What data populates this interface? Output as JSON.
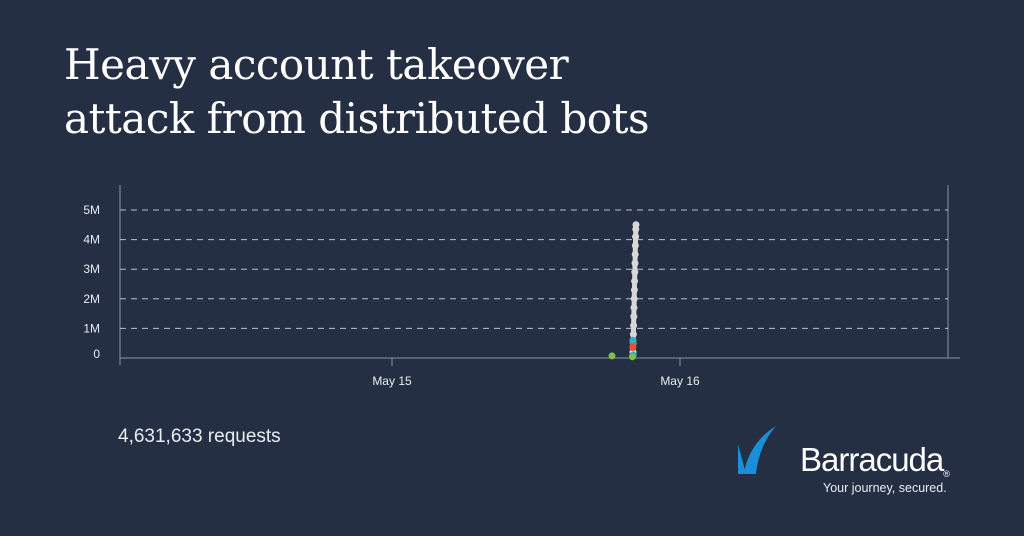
{
  "title": {
    "line1": "Heavy account takeover",
    "line2": "attack from distributed bots"
  },
  "total_label": "4,631,633 requests",
  "brand": {
    "name": "Barracuda",
    "registered": "®",
    "tagline": "Your journey, secured.",
    "color": "#1a8fd8"
  },
  "chart_data": {
    "type": "scatter",
    "title": "",
    "xlabel": "",
    "ylabel": "",
    "xlim": [
      "05-14 01:20",
      "05-16 23:20"
    ],
    "ylim": [
      0,
      5000000
    ],
    "grid": true,
    "legend": "none",
    "x_ticks": [
      {
        "x": "05-15 00:00",
        "label": "May 15"
      },
      {
        "x": "05-16 00:00",
        "label": "May 16"
      }
    ],
    "y_ticks": [
      {
        "y": 0,
        "label": "0"
      },
      {
        "y": 1000000,
        "label": "1M"
      },
      {
        "y": 2000000,
        "label": "2M"
      },
      {
        "y": 3000000,
        "label": "3M"
      },
      {
        "y": 4000000,
        "label": "4M"
      },
      {
        "y": 5000000,
        "label": "5M"
      }
    ],
    "series": [
      {
        "color": "#d8d8d8",
        "points": [
          [
            "05-15 20:05",
            200000
          ],
          [
            "05-15 20:06",
            500000
          ],
          [
            "05-15 20:07",
            800000
          ],
          [
            "05-15 20:08",
            1100000
          ],
          [
            "05-15 20:09",
            1400000
          ],
          [
            "05-15 20:10",
            1700000
          ],
          [
            "05-15 20:11",
            2000000
          ],
          [
            "05-15 20:12",
            2300000
          ],
          [
            "05-15 20:13",
            2600000
          ],
          [
            "05-15 20:14",
            2900000
          ],
          [
            "05-15 20:15",
            3200000
          ],
          [
            "05-15 20:16",
            3500000
          ],
          [
            "05-15 20:17",
            3800000
          ],
          [
            "05-15 20:18",
            4100000
          ],
          [
            "05-15 20:19",
            4350000
          ],
          [
            "05-15 20:20",
            4500000
          ]
        ]
      },
      {
        "color": "#e5533c",
        "points": [
          [
            "05-15 20:05",
            520000
          ],
          [
            "05-15 20:04",
            350000
          ]
        ]
      },
      {
        "color": "#29b3c6",
        "points": [
          [
            "05-15 20:05",
            600000
          ],
          [
            "05-15 20:06",
            100000
          ]
        ]
      },
      {
        "color": "#7cc242",
        "points": [
          [
            "05-15 18:20",
            70000
          ],
          [
            "05-15 20:02",
            40000
          ]
        ]
      }
    ]
  }
}
